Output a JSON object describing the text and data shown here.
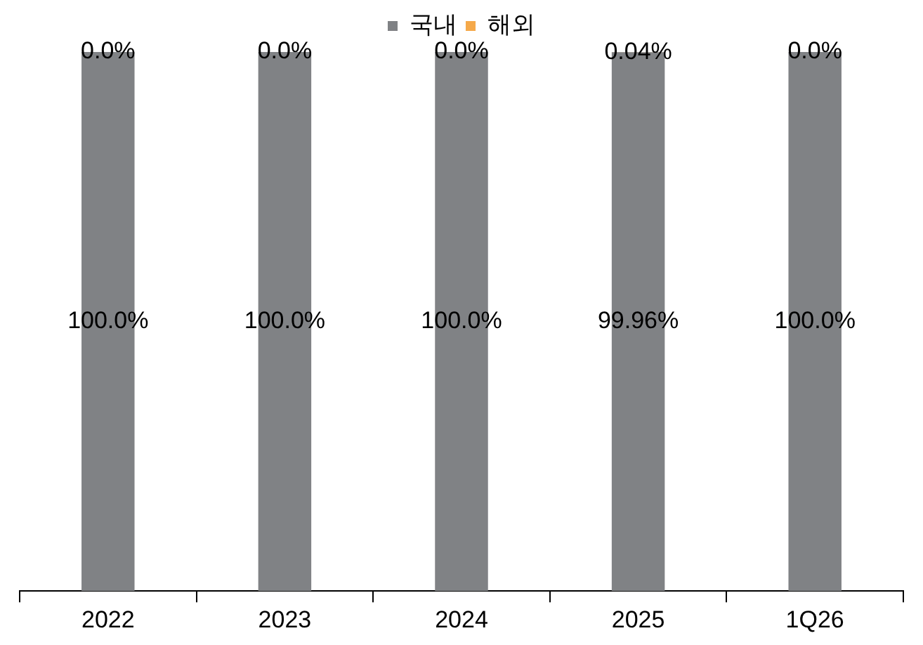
{
  "chart_data": {
    "type": "bar",
    "stacked": true,
    "legend": "top",
    "grid": false,
    "categories": [
      "2022",
      "2023",
      "2024",
      "2025",
      "1Q26"
    ],
    "series": [
      {
        "name": "국내",
        "color": "#808285",
        "values": [
          100,
          100,
          100,
          99.96,
          100
        ],
        "value_labels": [
          "100.0%",
          "100.0%",
          "100.0%",
          "99.96%",
          "100.0%"
        ]
      },
      {
        "name": "해외",
        "color": "#f5a94a",
        "values": [
          0,
          0,
          0,
          0.04,
          0
        ],
        "value_labels": [
          "0.0%",
          "0.0%",
          "0.0%",
          "0.04%",
          "0.0%"
        ]
      }
    ]
  }
}
